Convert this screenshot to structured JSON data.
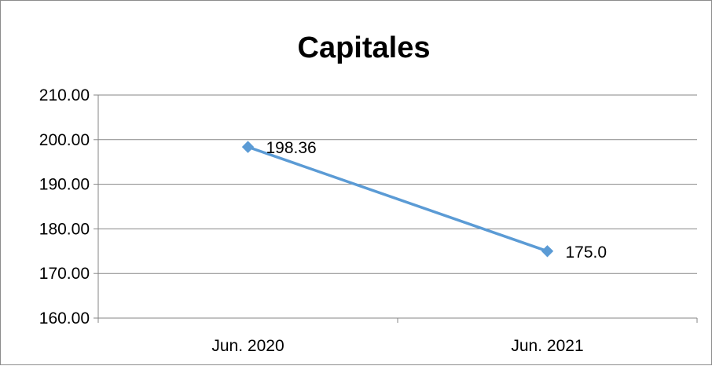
{
  "chart_data": {
    "type": "line",
    "title": "Capitales",
    "xlabel": "",
    "ylabel": "",
    "categories": [
      "Jun. 2020",
      "Jun. 2021"
    ],
    "series": [
      {
        "values": [
          198.36,
          175.0
        ],
        "data_labels": [
          "198.36",
          "175.0"
        ],
        "color": "#5B9BD5",
        "marker": "diamond"
      }
    ],
    "ylim": [
      160,
      210
    ],
    "yticks": [
      160,
      170,
      180,
      190,
      200,
      210
    ],
    "ytick_labels": [
      "160.00",
      "170.00",
      "180.00",
      "190.00",
      "200.00",
      "210.00"
    ],
    "grid": true,
    "legend": "none"
  },
  "colors": {
    "gridline": "#868686",
    "axis": "#868686",
    "frame": "#8c8c8c",
    "series_line": "#5B9BD5"
  }
}
